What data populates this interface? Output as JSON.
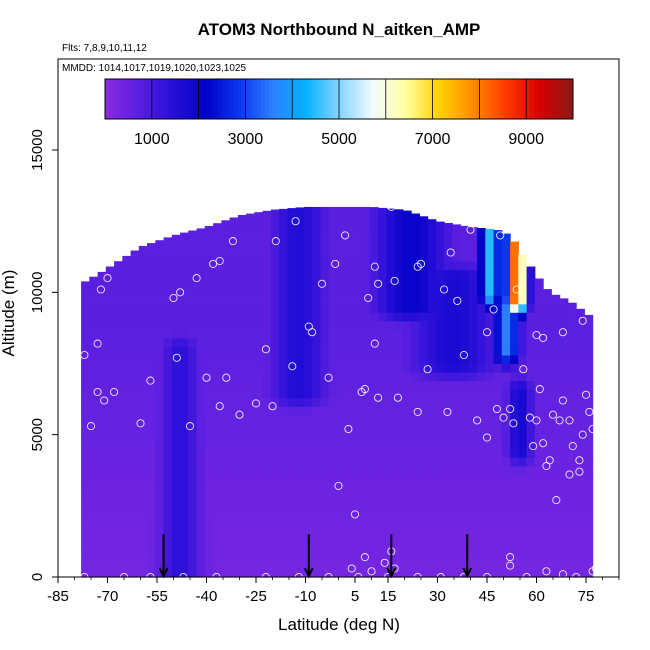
{
  "chart_data": {
    "type": "heatmap",
    "title": "ATOM3 Northbound N_aitken_AMP",
    "subtitle_flights": "Flts: 7,8,9,10,11,12",
    "subtitle_dates": "MMDD: 1014,1017,1019,1020,1023,1025",
    "xlabel": "Latitude (deg N)",
    "ylabel": "Altitude (m)",
    "xlim": [
      -85,
      85
    ],
    "ylim": [
      0,
      17500
    ],
    "x_ticks": [
      -85,
      -70,
      -55,
      -40,
      -25,
      -10,
      5,
      15,
      30,
      45,
      60,
      75
    ],
    "x_tick_labels": [
      "-85",
      "-70",
      "-55",
      "-40",
      "-25",
      "-10",
      "5",
      "15",
      "30",
      "45",
      "60",
      "75"
    ],
    "y_ticks": [
      0,
      5000,
      10000,
      15000
    ],
    "y_tick_labels": [
      "0",
      "5000",
      "10000",
      "15000"
    ],
    "colorbar": {
      "range": [
        0,
        10000
      ],
      "ticks": [
        1000,
        3000,
        5000,
        7000,
        9000
      ],
      "tick_labels": [
        "1000",
        "3000",
        "5000",
        "7000",
        "9000"
      ],
      "colors": [
        "#8a2be2",
        "#5a1fe0",
        "#2a10d8",
        "#0000c8",
        "#0a35ee",
        "#2e7dff",
        "#05b2ff",
        "#86d3ff",
        "#f0faff",
        "#ffffa0",
        "#ffd200",
        "#ff8c00",
        "#ff3a00",
        "#d80000",
        "#8a1a1a"
      ]
    },
    "arrow_latitudes": [
      -53,
      -9,
      16,
      39
    ],
    "grid": false,
    "legend": "none",
    "field": {
      "lat_range": [
        -78,
        77
      ],
      "upper_altitude": [
        [
          -78,
          10300
        ],
        [
          -72,
          10700
        ],
        [
          -60,
          11600
        ],
        [
          -50,
          12000
        ],
        [
          -40,
          12300
        ],
        [
          -30,
          12700
        ],
        [
          -20,
          12900
        ],
        [
          -10,
          13000
        ],
        [
          0,
          13000
        ],
        [
          10,
          13000
        ],
        [
          20,
          12900
        ],
        [
          30,
          12500
        ],
        [
          40,
          12300
        ],
        [
          48,
          12200
        ],
        [
          52,
          12000
        ],
        [
          56,
          11300
        ],
        [
          60,
          10600
        ],
        [
          64,
          10000
        ],
        [
          70,
          9700
        ],
        [
          77,
          9100
        ]
      ],
      "feature_peaks": [
        {
          "lat": -48,
          "lat_width": 6,
          "alt_low": 0,
          "alt_high": 8000,
          "value": 1400
        },
        {
          "lat": -12,
          "lat_width": 9,
          "alt_low": 6500,
          "alt_high": 13000,
          "value": 1600
        },
        {
          "lat": 22,
          "lat_width": 12,
          "alt_low": 9500,
          "alt_high": 12900,
          "value": 2000
        },
        {
          "lat": 54,
          "lat_width": 3,
          "alt_low": 9800,
          "alt_high": 12100,
          "value": 8600
        },
        {
          "lat": 46,
          "lat_width": 3,
          "alt_low": 10000,
          "alt_high": 12300,
          "value": 4500
        },
        {
          "lat": 51,
          "lat_width": 4,
          "alt_low": 8000,
          "alt_high": 9500,
          "value": 3600
        },
        {
          "lat": 55,
          "lat_width": 4,
          "alt_low": 4500,
          "alt_high": 6500,
          "value": 1800
        },
        {
          "lat": 35,
          "lat_width": 14,
          "alt_low": 7500,
          "alt_high": 10500,
          "value": 1700
        }
      ],
      "base_value": 300
    },
    "sample_points": [
      [
        -77,
        0
      ],
      [
        -65,
        0
      ],
      [
        -57,
        0
      ],
      [
        -47,
        0
      ],
      [
        -37,
        0
      ],
      [
        -22,
        0
      ],
      [
        -12,
        0
      ],
      [
        -3,
        0
      ],
      [
        4,
        300
      ],
      [
        6,
        0
      ],
      [
        8,
        700
      ],
      [
        10,
        200
      ],
      [
        14,
        500
      ],
      [
        15,
        0
      ],
      [
        17,
        300
      ],
      [
        24,
        0
      ],
      [
        31,
        0
      ],
      [
        38,
        0
      ],
      [
        45,
        0
      ],
      [
        52,
        400
      ],
      [
        57,
        0
      ],
      [
        63,
        200
      ],
      [
        68,
        100
      ],
      [
        72,
        0
      ],
      [
        77,
        200
      ],
      [
        78,
        300
      ],
      [
        52,
        700
      ],
      [
        -75,
        5300
      ],
      [
        -73,
        6500
      ],
      [
        -71,
        6200
      ],
      [
        -68,
        6500
      ],
      [
        -60,
        5400
      ],
      [
        -57,
        6900
      ],
      [
        -49,
        7700
      ],
      [
        -45,
        5300
      ],
      [
        -40,
        7000
      ],
      [
        -36,
        6000
      ],
      [
        -34,
        7000
      ],
      [
        -30,
        5700
      ],
      [
        -25,
        6100
      ],
      [
        -20,
        6000
      ],
      [
        -14,
        7400
      ],
      [
        -3,
        7000
      ],
      [
        3,
        5200
      ],
      [
        7,
        6500
      ],
      [
        8,
        6600
      ],
      [
        12,
        6300
      ],
      [
        18,
        6300
      ],
      [
        24,
        5800
      ],
      [
        27,
        7300
      ],
      [
        33,
        5800
      ],
      [
        38,
        7800
      ],
      [
        42,
        5500
      ],
      [
        45,
        4900
      ],
      [
        48,
        5900
      ],
      [
        50,
        5600
      ],
      [
        52,
        5900
      ],
      [
        53,
        5400
      ],
      [
        56,
        7300
      ],
      [
        58,
        5600
      ],
      [
        59,
        4600
      ],
      [
        60,
        5500
      ],
      [
        61,
        6600
      ],
      [
        62,
        4700
      ],
      [
        63,
        3900
      ],
      [
        64,
        4100
      ],
      [
        65,
        5700
      ],
      [
        67,
        5500
      ],
      [
        68,
        6200
      ],
      [
        70,
        5500
      ],
      [
        71,
        4600
      ],
      [
        73,
        3700
      ],
      [
        73,
        4100
      ],
      [
        74,
        5000
      ],
      [
        75,
        6400
      ],
      [
        76,
        5800
      ],
      [
        77,
        5200
      ],
      [
        -77,
        7800
      ],
      [
        -73,
        8200
      ],
      [
        -50,
        9800
      ],
      [
        -48,
        10000
      ],
      [
        -43,
        10500
      ],
      [
        -38,
        11000
      ],
      [
        -36,
        11100
      ],
      [
        -32,
        11800
      ],
      [
        -22,
        8000
      ],
      [
        -19,
        11800
      ],
      [
        -13,
        12500
      ],
      [
        -9,
        8800
      ],
      [
        -8,
        8600
      ],
      [
        -5,
        10300
      ],
      [
        -1,
        11000
      ],
      [
        2,
        12000
      ],
      [
        9,
        9800
      ],
      [
        11,
        8200
      ],
      [
        11,
        10900
      ],
      [
        12,
        10300
      ],
      [
        16,
        13000
      ],
      [
        17,
        10400
      ],
      [
        24,
        10900
      ],
      [
        25,
        11000
      ],
      [
        32,
        10100
      ],
      [
        34,
        11400
      ],
      [
        36,
        9700
      ],
      [
        40,
        12200
      ],
      [
        45,
        8600
      ],
      [
        49,
        12000
      ],
      [
        54,
        10100
      ],
      [
        60,
        8500
      ],
      [
        62,
        8400
      ],
      [
        68,
        8600
      ],
      [
        74,
        9000
      ]
    ],
    "cutoff_point": [
      0,
      3200
    ],
    "extra_points": [
      [
        -70,
        10500
      ],
      [
        -72,
        10100
      ],
      [
        5,
        2200
      ],
      [
        16,
        900
      ],
      [
        0,
        3200
      ],
      [
        47,
        9400
      ],
      [
        66,
        2700
      ],
      [
        70,
        3600
      ]
    ]
  }
}
